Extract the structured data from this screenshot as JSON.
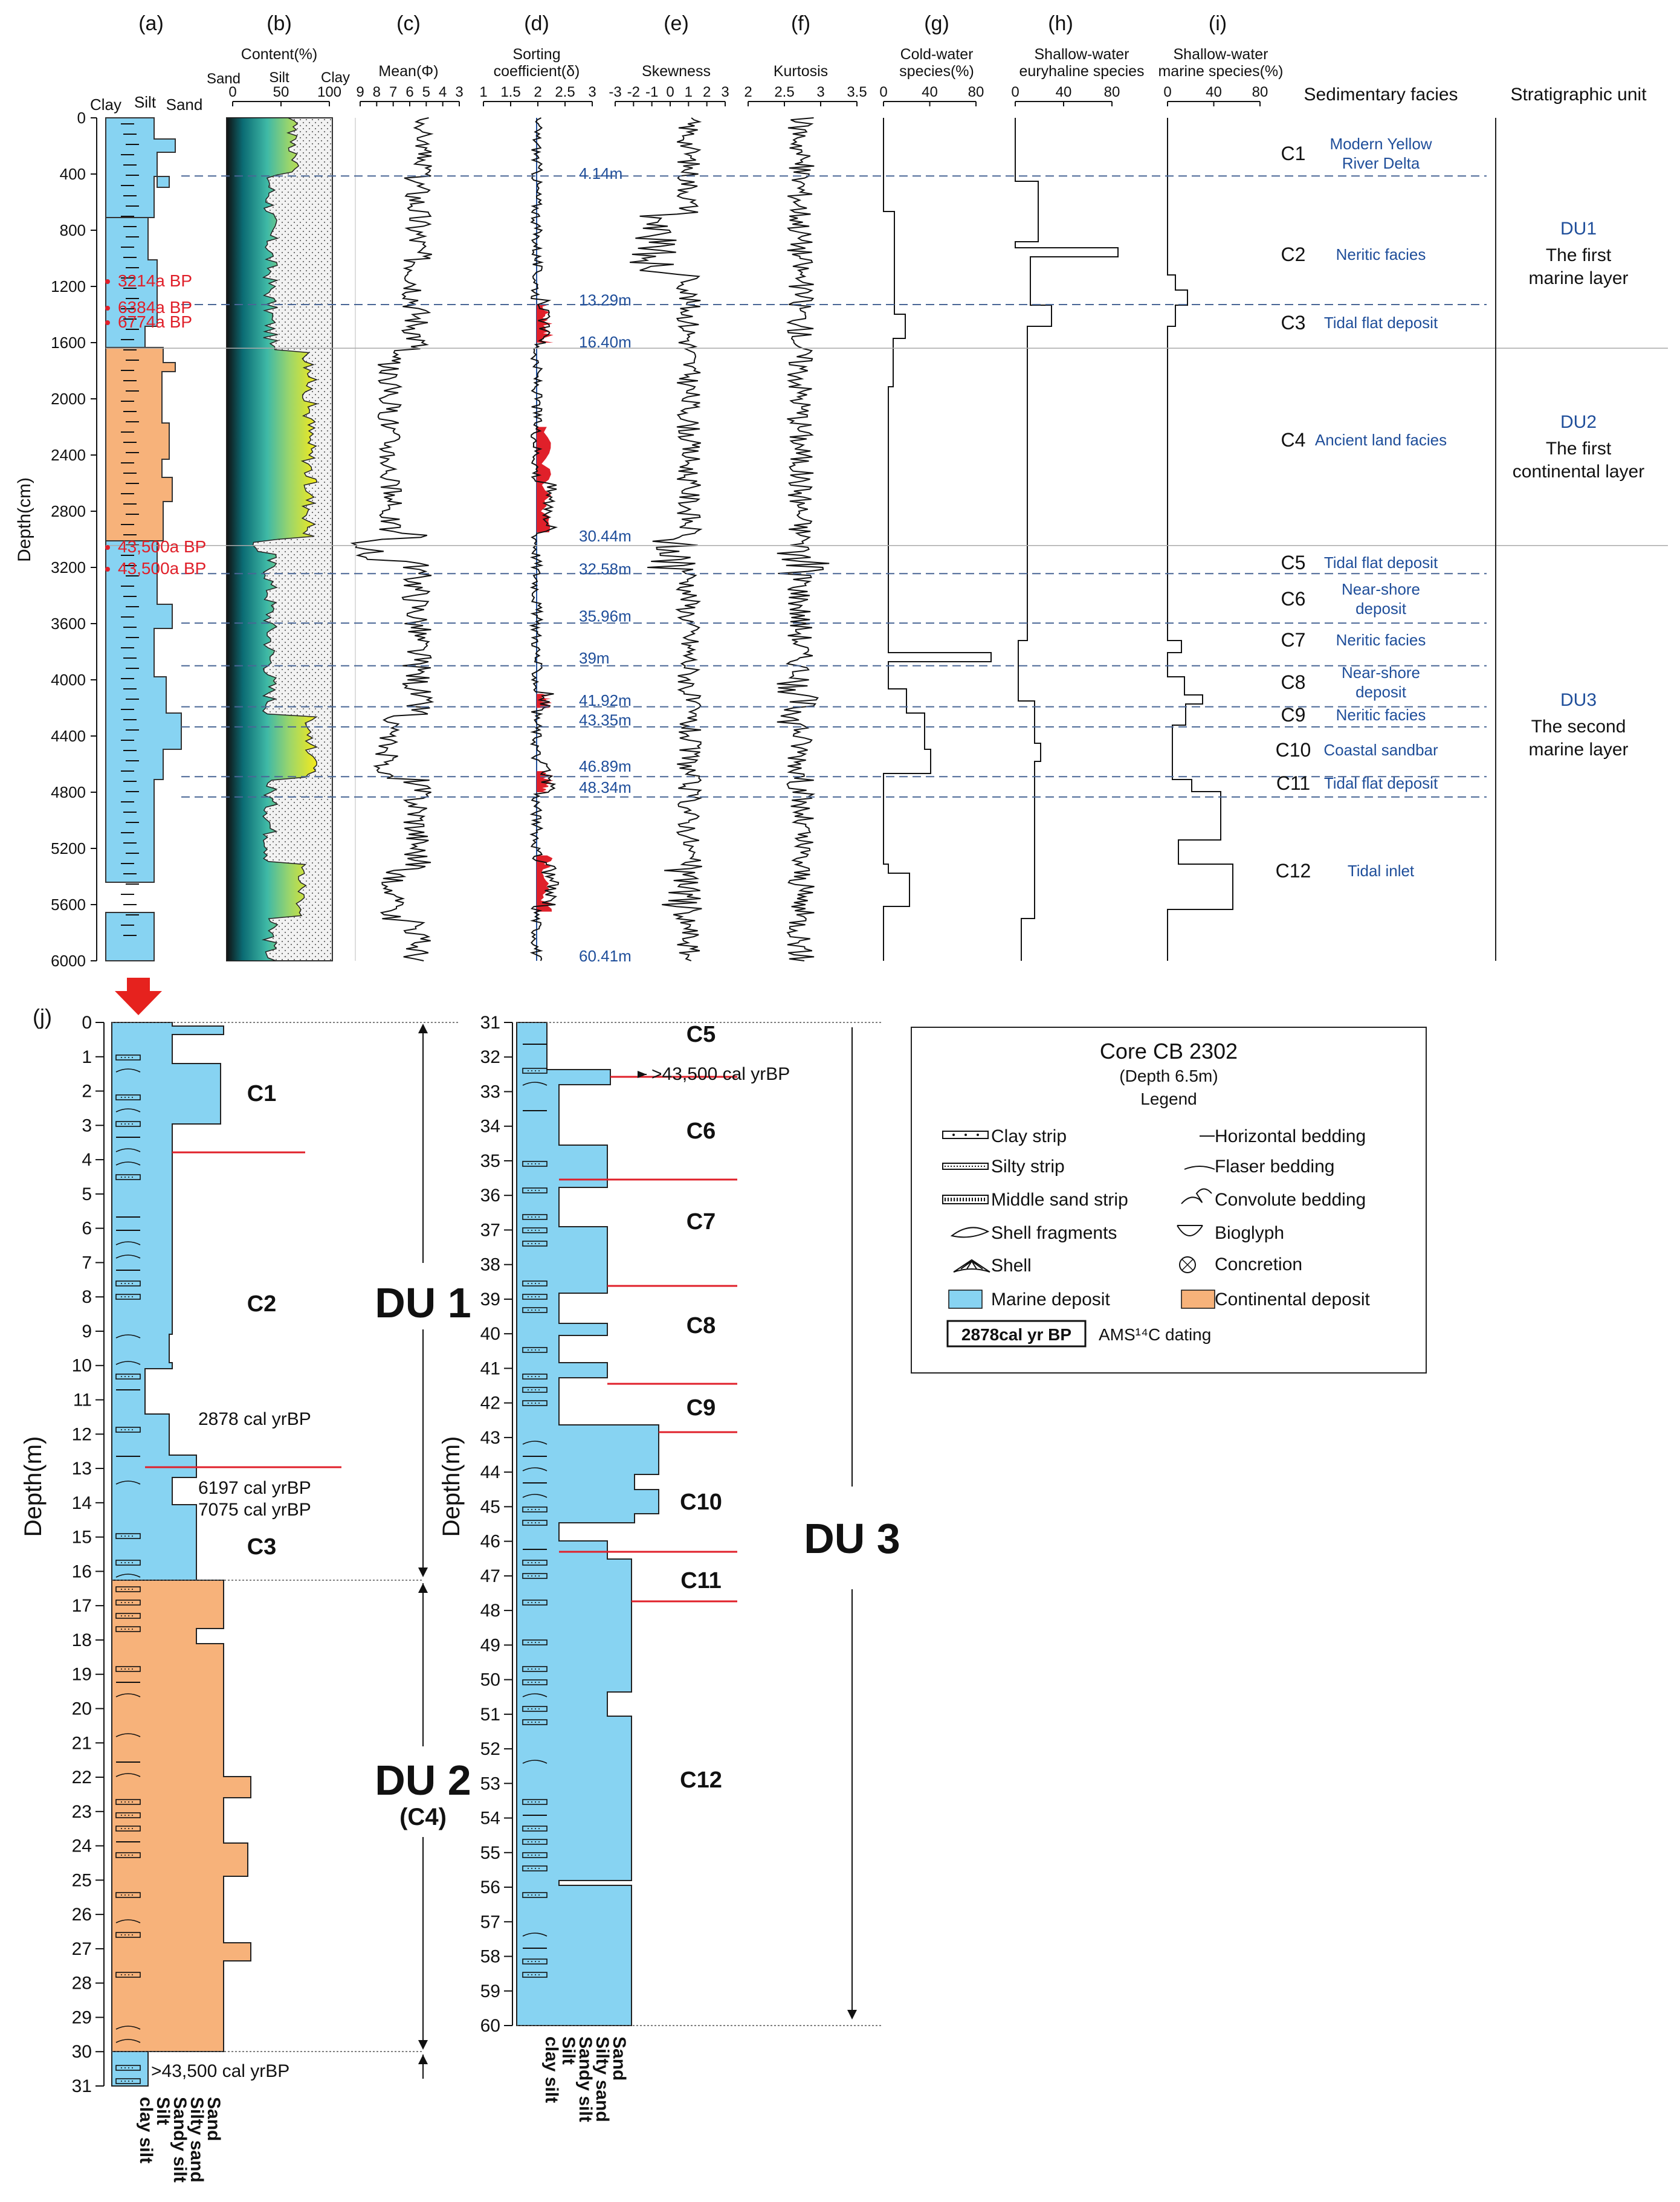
{
  "panel_labels": [
    "(a)",
    "(b)",
    "(c)",
    "(d)",
    "(e)",
    "(f)",
    "(g)",
    "(h)",
    "(i)",
    "(j)"
  ],
  "track_titles": {
    "b": "Content(%)",
    "c": "Mean(Φ)",
    "d1": "Sorting",
    "d2": "coefficient(δ)",
    "e": "Skewness",
    "f": "Kurtosis",
    "g1": "Cold-water",
    "g2": "species(%)",
    "h1": "Shallow-water",
    "h2": "euryhaline species",
    "i1": "Shallow-water",
    "i2": "marine species(%)",
    "facies": "Sedimentary facies",
    "strat": "Stratigraphic unit"
  },
  "texture_labels": {
    "clay": "Clay",
    "silt": "Silt",
    "sand": "Sand"
  },
  "content_labels": {
    "sand": "Sand",
    "silt": "Silt",
    "clay": "Clay"
  },
  "ticks": {
    "b": [
      "0",
      "50",
      "100"
    ],
    "c": [
      "9",
      "8",
      "7",
      "6",
      "5",
      "4",
      "3"
    ],
    "d": [
      "1",
      "1.5",
      "2",
      "2.5",
      "3"
    ],
    "e": [
      "-3",
      "-2",
      "-1",
      "0",
      "1",
      "2",
      "3"
    ],
    "f": [
      "2",
      "2.5",
      "3",
      "3.5"
    ],
    "g": [
      "0",
      "40",
      "80"
    ],
    "h": [
      "0",
      "40",
      "80"
    ],
    "i": [
      "0",
      "40",
      "80"
    ]
  },
  "depth_axis_top": {
    "label": "Depth(cm)",
    "ticks": [
      "0",
      "400",
      "800",
      "1200",
      "1600",
      "2000",
      "2400",
      "2800",
      "3200",
      "3600",
      "4000",
      "4400",
      "4800",
      "5200",
      "5600",
      "6000"
    ]
  },
  "dating_top": [
    "3214a BP",
    "6384a BP",
    "6774a BP",
    "43,500a BP",
    "43,500a BP"
  ],
  "boundary_depths": [
    "4.14m",
    "13.29m",
    "16.40m",
    "30.44m",
    "32.58m",
    "35.96m",
    "39m",
    "41.92m",
    "43.35m",
    "46.89m",
    "48.34m",
    "60.41m"
  ],
  "facies": [
    {
      "code": "C1",
      "name_l1": "Modern Yellow",
      "name_l2": "River Delta"
    },
    {
      "code": "C2",
      "name_l1": "Neritic facies",
      "name_l2": ""
    },
    {
      "code": "C3",
      "name_l1": "Tidal flat deposit",
      "name_l2": ""
    },
    {
      "code": "C4",
      "name_l1": "Ancient land facies",
      "name_l2": ""
    },
    {
      "code": "C5",
      "name_l1": "Tidal flat deposit",
      "name_l2": ""
    },
    {
      "code": "C6",
      "name_l1": "Near-shore",
      "name_l2": "deposit"
    },
    {
      "code": "C7",
      "name_l1": "Neritic facies",
      "name_l2": ""
    },
    {
      "code": "C8",
      "name_l1": "Near-shore",
      "name_l2": "deposit"
    },
    {
      "code": "C9",
      "name_l1": "Neritic facies",
      "name_l2": ""
    },
    {
      "code": "C10",
      "name_l1": "Coastal sandbar",
      "name_l2": ""
    },
    {
      "code": "C11",
      "name_l1": "Tidal flat deposit",
      "name_l2": ""
    },
    {
      "code": "C12",
      "name_l1": "Tidal inlet",
      "name_l2": ""
    }
  ],
  "strat_units": [
    {
      "code": "DU1",
      "l1": "The first",
      "l2": "marine layer"
    },
    {
      "code": "DU2",
      "l1": "The first",
      "l2": "continental layer"
    },
    {
      "code": "DU3",
      "l1": "The second",
      "l2": "marine layer"
    }
  ],
  "lower": {
    "depth_label": "Depth(m)",
    "left_ticks": [
      "0",
      "1",
      "2",
      "3",
      "4",
      "5",
      "6",
      "7",
      "8",
      "9",
      "10",
      "11",
      "12",
      "13",
      "14",
      "15",
      "16",
      "17",
      "18",
      "19",
      "20",
      "21",
      "22",
      "23",
      "24",
      "25",
      "26",
      "27",
      "28",
      "29",
      "30",
      "31"
    ],
    "right_ticks": [
      "31",
      "32",
      "33",
      "34",
      "35",
      "36",
      "37",
      "38",
      "39",
      "40",
      "41",
      "42",
      "43",
      "44",
      "45",
      "46",
      "47",
      "48",
      "49",
      "50",
      "51",
      "52",
      "53",
      "54",
      "55",
      "56",
      "57",
      "58",
      "59",
      "60"
    ],
    "grain_labels": [
      "clay silt",
      "Silt",
      "Sandy silt",
      "Silty sand",
      "Sand"
    ],
    "left_facies": [
      "C1",
      "C2",
      "C3"
    ],
    "right_facies": [
      "C5",
      "C6",
      "C7",
      "C8",
      "C9",
      "C10",
      "C11",
      "C12"
    ],
    "du1": "DU 1",
    "du2": "DU 2",
    "du2_sub": "(C4)",
    "du3": "DU 3",
    "dates_left": [
      "2878 cal yrBP",
      "6197 cal yrBP",
      "7075 cal yrBP",
      ">43,500 cal yrBP"
    ],
    "dates_right": [
      ">43,500 cal yrBP"
    ]
  },
  "legend": {
    "title": "Core CB 2302",
    "subtitle": "(Depth 6.5m)",
    "heading": "Legend",
    "items_left": [
      "Clay strip",
      "Silty strip",
      "Middle sand strip",
      "Shell fragments",
      "Shell",
      "Marine deposit"
    ],
    "items_right": [
      "Horizontal bedding",
      "Flaser bedding",
      "Convolute bedding",
      "Bioglyph",
      "Concretion",
      "Continental deposit"
    ],
    "dating_box": "2878cal yr BP",
    "dating_text": "AMS¹⁴C dating"
  },
  "colors": {
    "marine": "#87d3f2",
    "continental": "#f7b27a",
    "red_line": "#e0202a",
    "blue_text": "#1f4e9a",
    "dash": "#4a6796"
  }
}
